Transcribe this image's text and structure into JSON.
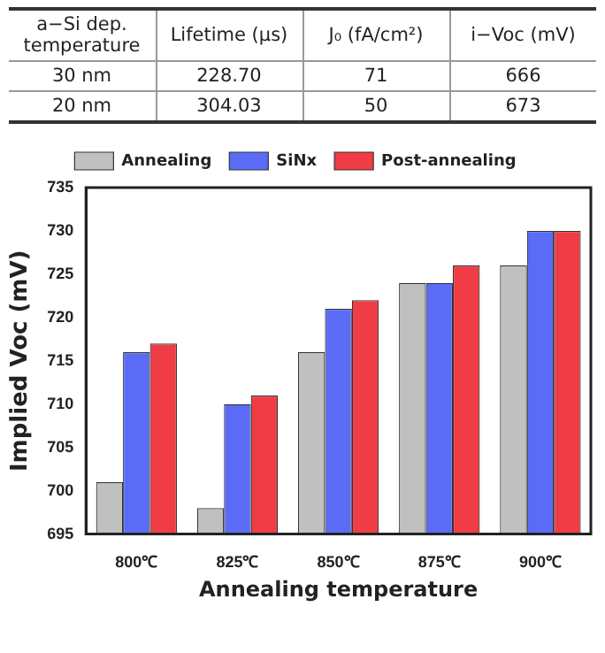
{
  "chart_data": [
    {
      "type": "other",
      "annotations": [
        "a−Si dep. temperature",
        "Lifetime (μs)",
        "J₀ (fA/cm²)",
        "i−Voc (mV)",
        "30 nm",
        "228.70",
        "71",
        "666",
        "20 nm",
        "304.03",
        "50",
        "673"
      ]
    },
    {
      "type": "bar",
      "categories": [
        "800℃",
        "825℃",
        "850℃",
        "875℃",
        "900℃"
      ],
      "series": [
        {
          "name": "Annealing",
          "color": "#c0c0c0",
          "values": [
            701,
            698,
            716,
            724,
            726
          ]
        },
        {
          "name": "SiNx",
          "color": "#5a6cf5",
          "values": [
            716,
            710,
            721,
            724,
            730
          ]
        },
        {
          "name": "Post-annealing",
          "color": "#f03c44",
          "values": [
            717,
            711,
            722,
            726,
            730
          ]
        }
      ],
      "xlabel": "Annealing temperature",
      "ylabel": "Implied Voc (mV)",
      "ylim": [
        695,
        735
      ],
      "yticks": [
        695,
        700,
        705,
        710,
        715,
        720,
        725,
        730,
        735
      ],
      "grid": false,
      "legend": "top"
    }
  ]
}
